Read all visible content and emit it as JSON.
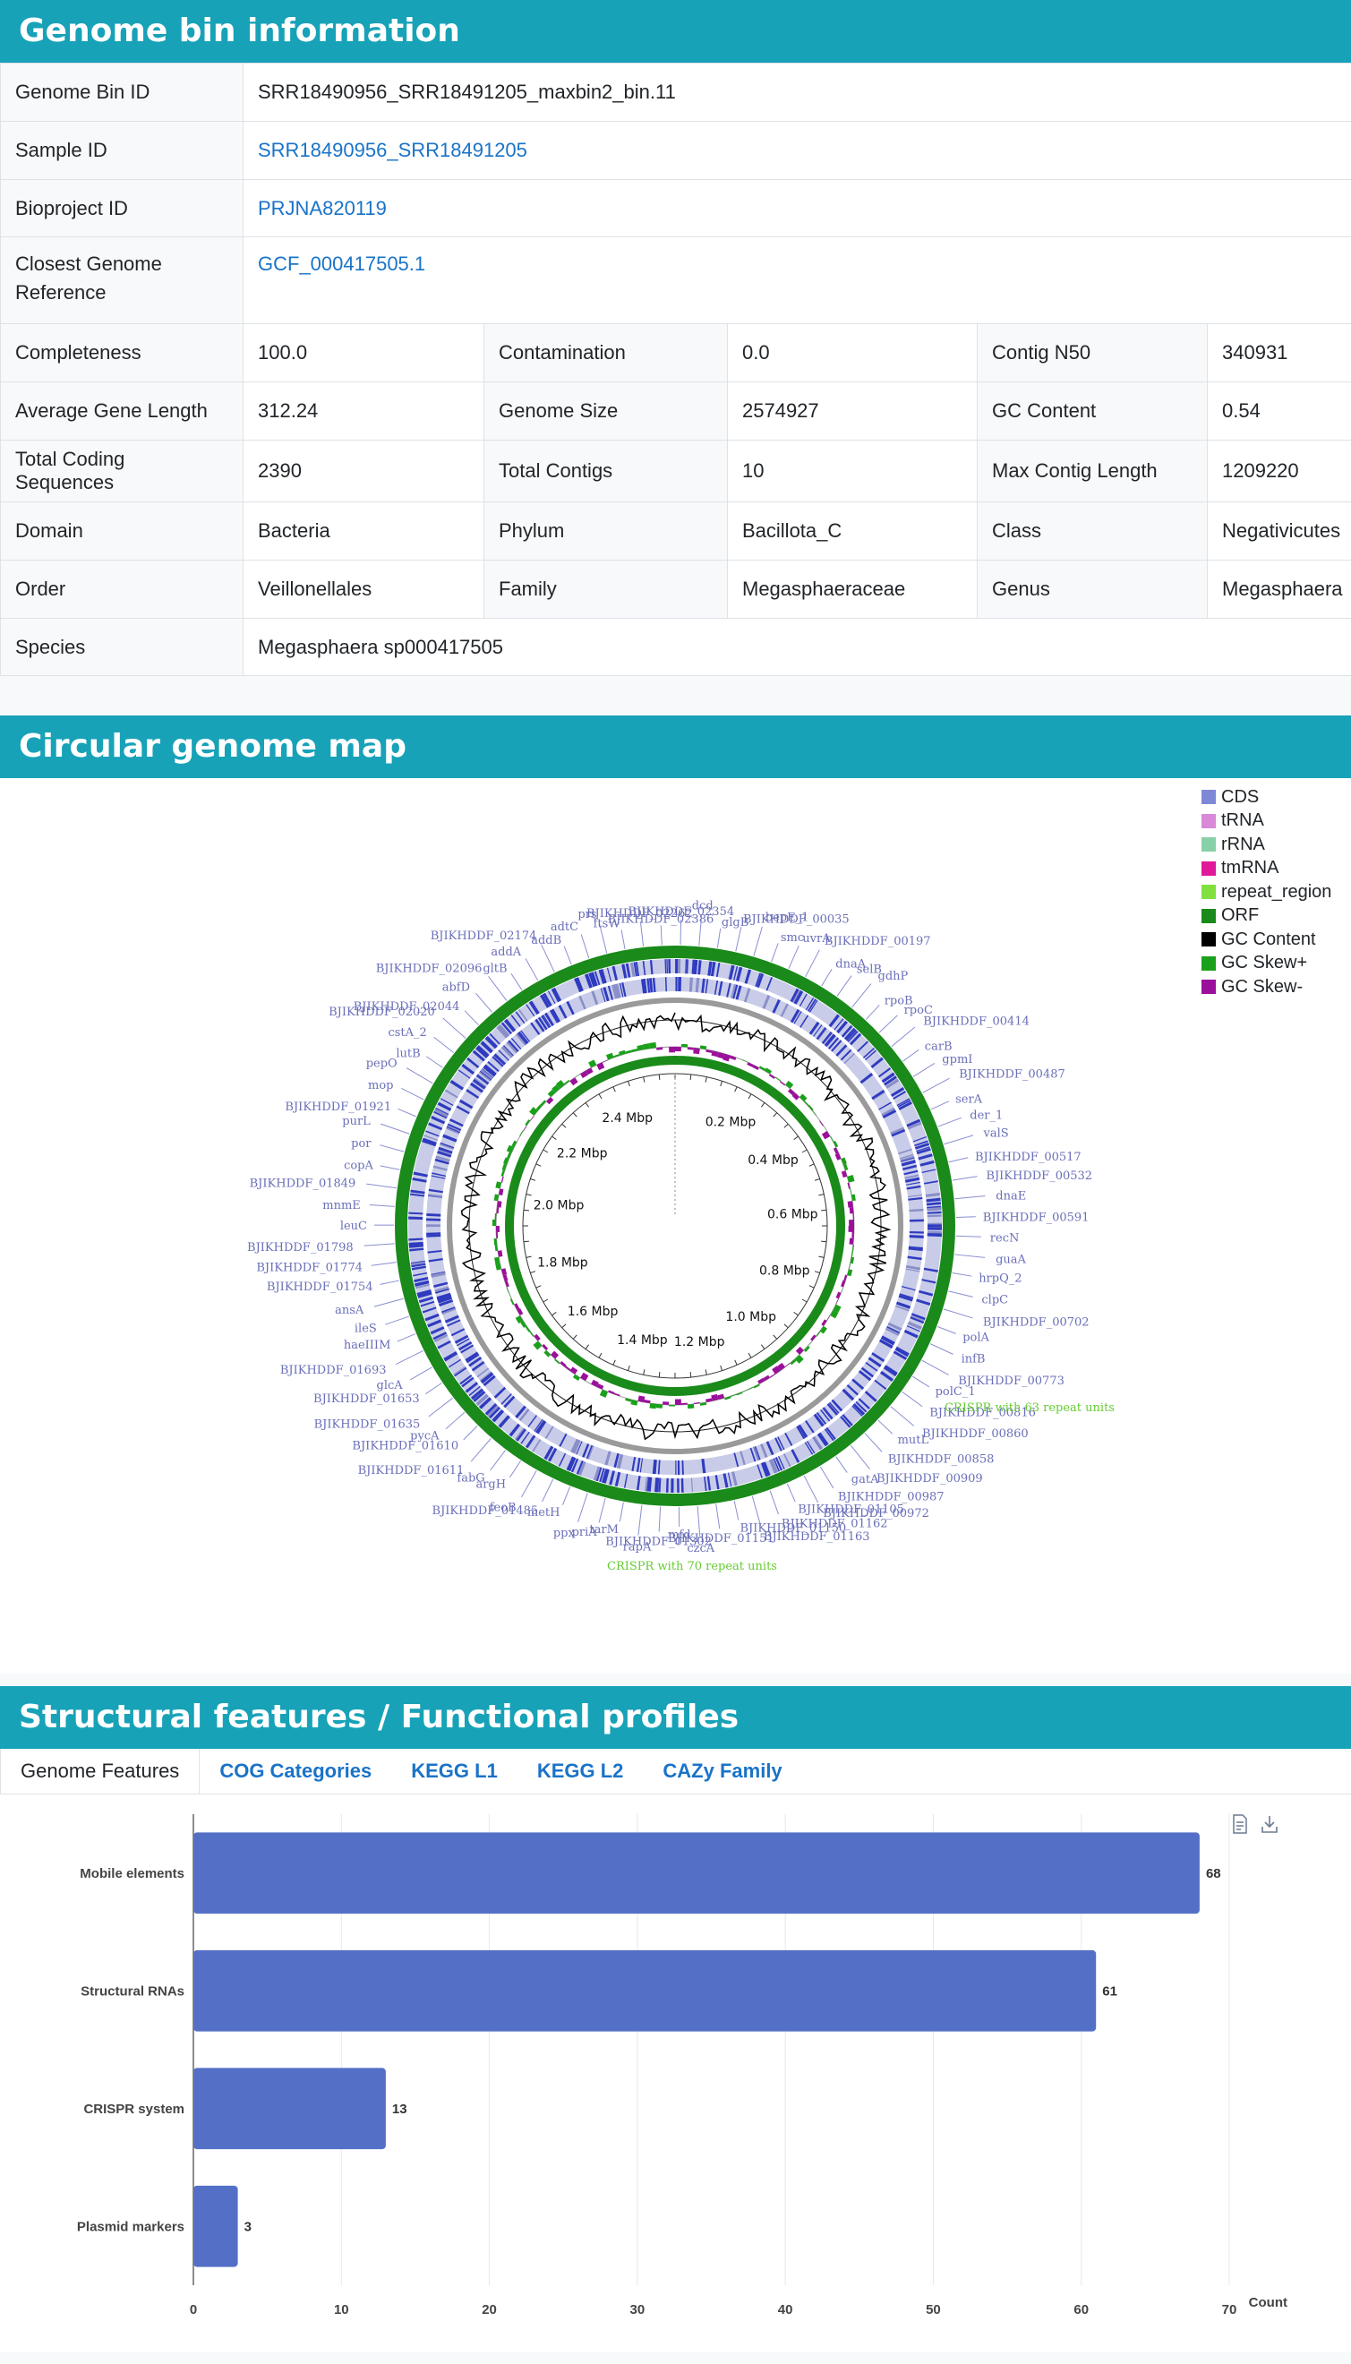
{
  "sections": {
    "bin_info": "Genome bin information",
    "circular_map": "Circular genome map",
    "profiles": "Structural features / Functional profiles"
  },
  "bin_info": {
    "genome_bin_id": {
      "label": "Genome Bin ID",
      "value": "SRR18490956_SRR18491205_maxbin2_bin.11"
    },
    "sample_id": {
      "label": "Sample ID",
      "value": "SRR18490956_SRR18491205"
    },
    "bioproject_id": {
      "label": "Bioproject ID",
      "value": "PRJNA820119"
    },
    "closest_ref": {
      "label": "Closest Genome Reference",
      "value": "GCF_000417505.1"
    },
    "grid": [
      [
        [
          "Completeness",
          "100.0"
        ],
        [
          "Contamination",
          "0.0"
        ],
        [
          "Contig N50",
          "340931"
        ]
      ],
      [
        [
          "Average Gene Length",
          "312.24"
        ],
        [
          "Genome Size",
          "2574927"
        ],
        [
          "GC Content",
          "0.54"
        ]
      ],
      [
        [
          "Total Coding Sequences",
          "2390"
        ],
        [
          "Total Contigs",
          "10"
        ],
        [
          "Max Contig Length",
          "1209220"
        ]
      ],
      [
        [
          "Domain",
          "Bacteria"
        ],
        [
          "Phylum",
          "Bacillota_C"
        ],
        [
          "Class",
          "Negativicutes"
        ]
      ],
      [
        [
          "Order",
          "Veillonellales"
        ],
        [
          "Family",
          "Megasphaeraceae"
        ],
        [
          "Genus",
          "Megasphaera"
        ]
      ]
    ],
    "species": {
      "label": "Species",
      "value": "Megasphaera sp000417505"
    }
  },
  "legend": [
    {
      "label": "CDS",
      "color": "#7f88d6"
    },
    {
      "label": "tRNA",
      "color": "#d889d8"
    },
    {
      "label": "rRNA",
      "color": "#88d0a8"
    },
    {
      "label": "tmRNA",
      "color": "#e0189a"
    },
    {
      "label": "repeat_region",
      "color": "#7fe040"
    },
    {
      "label": "ORF",
      "color": "#1a8a1a"
    },
    {
      "label": "GC Content",
      "color": "#000000"
    },
    {
      "label": "GC Skew+",
      "color": "#1aa01a"
    },
    {
      "label": "GC Skew-",
      "color": "#9a109a"
    }
  ],
  "genome_map": {
    "ticks": [
      "0.2 Mbp",
      "0.4 Mbp",
      "0.6 Mbp",
      "0.8 Mbp",
      "1.0 Mbp",
      "1.2 Mbp",
      "1.4 Mbp",
      "1.6 Mbp",
      "1.8 Mbp",
      "2.0 Mbp",
      "2.2 Mbp",
      "2.4 Mbp"
    ],
    "gene_labels": [
      "BJIKHDDF_02386",
      "BJIKHDDF_02354",
      "dcd",
      "glgB",
      "BJIKHDDF_00035",
      "bepE_1",
      "smc",
      "uvrA",
      "BJIKHDDF_00197",
      "dnaA",
      "selB",
      "gdhP",
      "rpoB",
      "rpoC",
      "BJIKHDDF_00414",
      "carB",
      "gpmI",
      "BJIKHDDF_00487",
      "serA",
      "der_1",
      "valS",
      "BJIKHDDF_00517",
      "BJIKHDDF_00532",
      "dnaE",
      "BJIKHDDF_00591",
      "recN",
      "guaA",
      "hrpQ_2",
      "clpC",
      "BJIKHDDF_00702",
      "polA",
      "infB",
      "BJIKHDDF_00773",
      "polC_1",
      "BJIKHDDF_00816",
      "BJIKHDDF_00860",
      "mutL",
      "BJIKHDDF_00858",
      "BJIKHDDF_00909",
      "gatA",
      "BJIKHDDF_00987",
      "BJIKHDDF_00972",
      "BJIKHDDF_01105",
      "BJIKHDDF_01162",
      "BJIKHDDF_01163",
      "BJIKHDDF_01150",
      "BJIKHDDF_01151",
      "czcA",
      "mfd",
      "BJIKHDDF_01302",
      "rapA",
      "tarM",
      "priA",
      "ppx",
      "metH",
      "BJIKHDDF_01485",
      "feoB",
      "argH",
      "fabG",
      "BJIKHDDF_01611",
      "BJIKHDDF_01610",
      "pycA",
      "BJIKHDDF_01635",
      "BJIKHDDF_01653",
      "glcA",
      "BJIKHDDF_01693",
      "haeIIIM",
      "ileS",
      "ansA",
      "BJIKHDDF_01754",
      "BJIKHDDF_01774",
      "BJIKHDDF_01798",
      "leuC",
      "mnmE",
      "BJIKHDDF_01849",
      "copA",
      "por",
      "purL",
      "BJIKHDDF_01921",
      "mop",
      "pepO",
      "lutB",
      "cstA_2",
      "BJIKHDDF_02020",
      "BJIKHDDF_02044",
      "abfD",
      "BJIKHDDF_02096",
      "gltB",
      "addA",
      "BJIKHDDF_02174",
      "addB",
      "adtC",
      "prs",
      "ftsW",
      "BJIKHDDF_02262"
    ],
    "crispr_labels": [
      "CRISPR with 63 repeat units",
      "CRISPR with 70 repeat units"
    ]
  },
  "tabs": [
    "Genome Features",
    "COG Categories",
    "KEGG L1",
    "KEGG L2",
    "CAZy Family"
  ],
  "chart_data": {
    "type": "bar",
    "orientation": "horizontal",
    "categories": [
      "Mobile elements",
      "Structural RNAs",
      "CRISPR system",
      "Plasmid markers"
    ],
    "values": [
      68,
      61,
      13,
      3
    ],
    "xlim": [
      0,
      70
    ],
    "xticks": [
      0,
      10,
      20,
      30,
      40,
      50,
      60,
      70
    ],
    "xlabel": "Count",
    "color": "#5470c6",
    "grid": true
  }
}
